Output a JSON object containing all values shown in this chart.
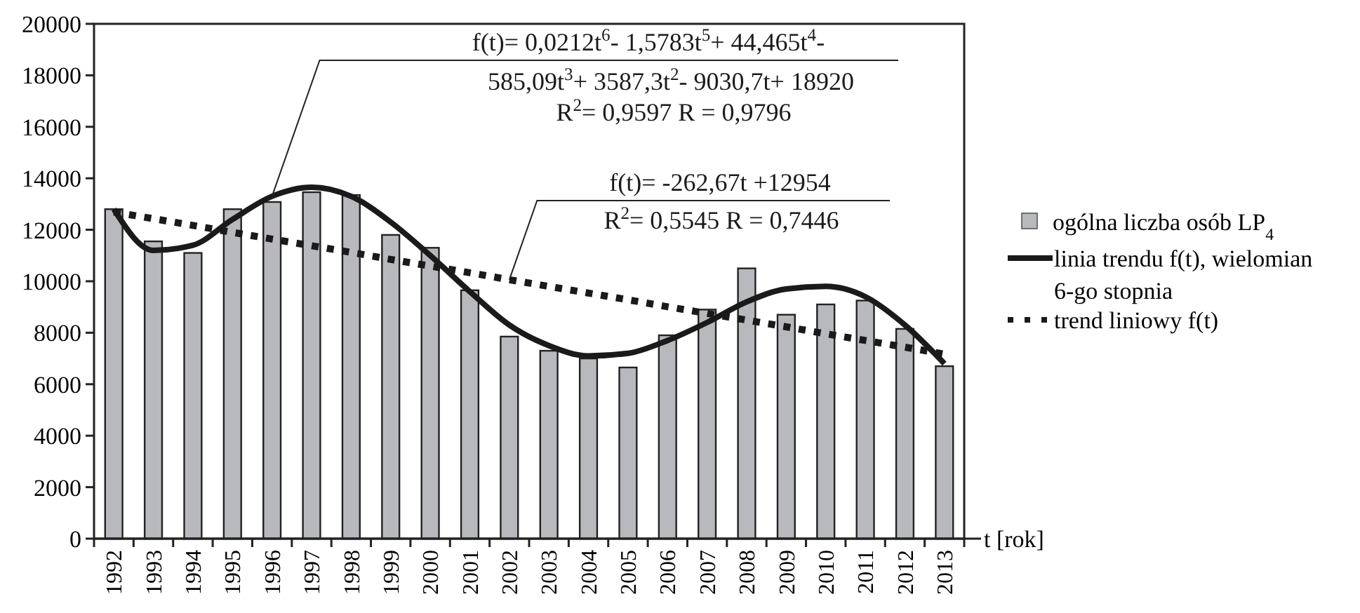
{
  "chart_data": {
    "type": "bar",
    "xlabel": "t [rok]",
    "categories": [
      "1992",
      "1993",
      "1994",
      "1995",
      "1996",
      "1997",
      "1998",
      "1999",
      "2000",
      "2001",
      "2002",
      "2003",
      "2004",
      "2005",
      "2006",
      "2007",
      "2008",
      "2009",
      "2010",
      "2011",
      "2012",
      "2013"
    ],
    "series": [
      {
        "name": "ogólna liczba osób LP$_{4}$",
        "type": "bar",
        "color": "#b8b9bd",
        "values": [
          12800,
          11550,
          11100,
          12800,
          13080,
          13460,
          13350,
          11800,
          11300,
          9650,
          7850,
          7300,
          7000,
          6650,
          7900,
          8900,
          10500,
          8700,
          9100,
          9250,
          8150,
          6700
        ]
      },
      {
        "name": "linia trendu f(t), wielomian 6-go stopnia",
        "type": "line",
        "color": "#1a1a1a",
        "line_style": "solid",
        "values": [
          12800,
          11200,
          11400,
          12400,
          13300,
          13650,
          13300,
          12300,
          11000,
          9600,
          8300,
          7500,
          7100,
          7200,
          7700,
          8400,
          9200,
          9700,
          9800,
          9400,
          8300,
          6800
        ]
      },
      {
        "name": "trend liniowy f(t)",
        "type": "line",
        "color": "#1a1a1a",
        "line_style": "dotted",
        "values": [
          12690,
          12430,
          12170,
          11900,
          11640,
          11380,
          11120,
          10850,
          10590,
          10330,
          10060,
          9800,
          9540,
          9280,
          9010,
          8750,
          8490,
          8230,
          7960,
          7700,
          7440,
          7170
        ]
      }
    ],
    "ylim": [
      0,
      20000
    ],
    "yticks": [
      0,
      2000,
      4000,
      6000,
      8000,
      10000,
      12000,
      14000,
      16000,
      18000,
      20000
    ],
    "grid": false,
    "legend": "right",
    "marker": "none",
    "annotations": [
      {
        "text": "f(t)= 0,0212t$^{6}$- 1,5783t$^{5}$+ 44,465t$^{4}$-",
        "x": "1996",
        "y": 13300
      },
      "585,09t$^{3}$+ 3587,3t$^{2}$- 9030,7t+ 18920",
      "R$^{2}$= 0,9597    R = 0,9796",
      {
        "text": "f(t)= -262,67t +12954",
        "x": "2002",
        "y": 10060
      },
      "R$^{2}$= 0,5545   R = 0,7446"
    ]
  }
}
